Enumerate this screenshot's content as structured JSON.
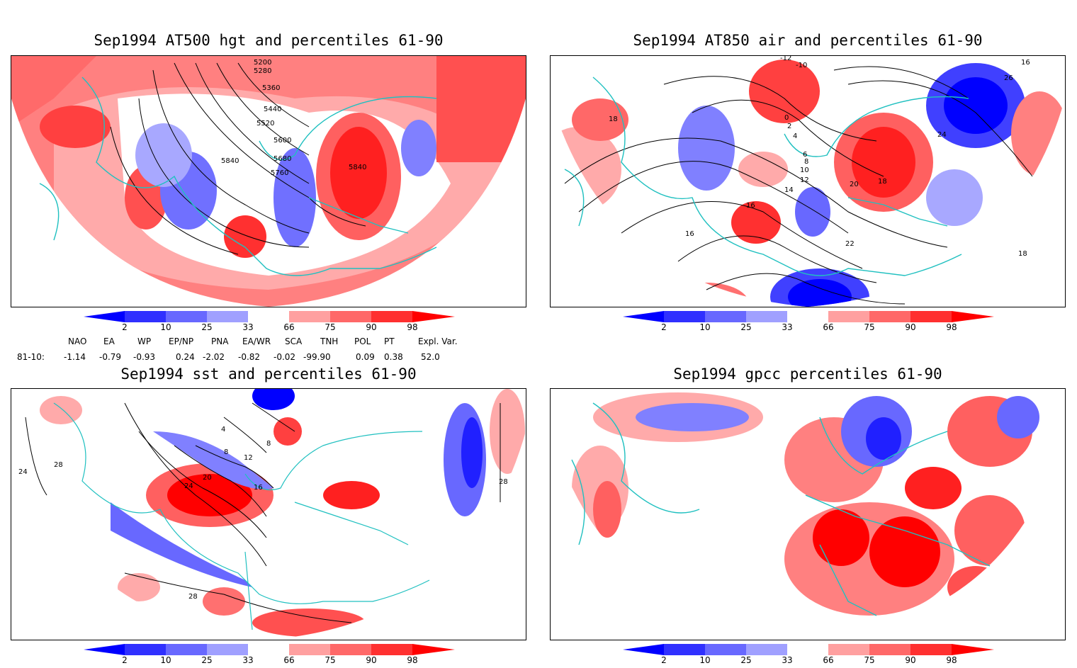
{
  "panels": [
    {
      "title": "Sep1994 AT500 hgt and percentiles 61-90",
      "contour_labels": [
        "5200",
        "5280",
        "5360",
        "5440",
        "5520",
        "5600",
        "5680",
        "5760",
        "5840",
        "5840"
      ]
    },
    {
      "title": "Sep1994 AT850 air and percentiles 61-90",
      "contour_labels": [
        "-12",
        "-10",
        "0",
        "2",
        "4",
        "6",
        "8",
        "10",
        "12",
        "14",
        "16",
        "18",
        "18",
        "20",
        "22",
        "24",
        "26",
        "16",
        "18",
        "16"
      ]
    },
    {
      "title": "Sep1994 sst and percentiles 61-90",
      "contour_labels": [
        "24",
        "28",
        "28",
        "24",
        "20",
        "16",
        "12",
        "8",
        "4",
        "8",
        "28"
      ]
    },
    {
      "title": "Sep1994 gpcc percentiles 61-90",
      "contour_labels": []
    }
  ],
  "colorbar": {
    "labels": [
      "2",
      "10",
      "25",
      "33",
      "66",
      "75",
      "90",
      "98"
    ],
    "colors": [
      "#0000ff",
      "#3030ff",
      "#6868ff",
      "#a0a0ff",
      "#ffffff",
      "#ffa0a0",
      "#ff6868",
      "#ff3030",
      "#ff0000"
    ]
  },
  "indices": {
    "headers": [
      "NAO",
      "EA",
      "WP",
      "EP/NP",
      "PNA",
      "EA/WR",
      "SCA",
      "TNH",
      "POL",
      "PT",
      "Expl. Var."
    ],
    "row_label": "81-10:",
    "values": [
      "-1.14",
      "-0.79",
      "-0.93",
      "0.24",
      "-2.02",
      "-0.82",
      "-0.02",
      "-99.90",
      "0.09",
      "0.38",
      "52.0"
    ]
  },
  "colors": {
    "coast": "#20c0c0",
    "red_strong": "#ff2020",
    "red_mid": "#ff6666",
    "red_light": "#ffaaaa",
    "blue_strong": "#2020ff",
    "blue_mid": "#6868ff",
    "blue_light": "#a8a8ff"
  }
}
